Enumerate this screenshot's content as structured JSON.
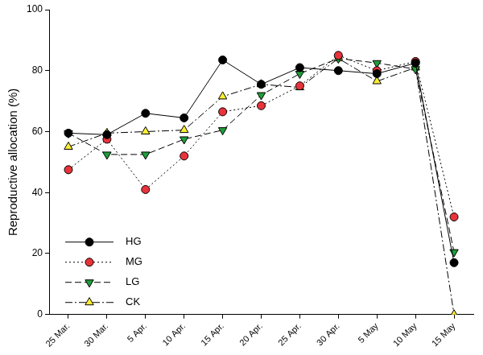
{
  "chart_data": {
    "type": "line",
    "y_label": "Reproductive allocation (%)",
    "categories": [
      "25 Mar.",
      "30 Mar.",
      "5 Apr.",
      "10 Apr.",
      "15 Apr.",
      "20 Apr.",
      "25 Apr.",
      "30 Apr.",
      "5 May",
      "10 May",
      "15 May"
    ],
    "series": [
      {
        "name": "HG",
        "color": "#000000",
        "marker": "circle",
        "line_style": "solid",
        "values": [
          59.5,
          59,
          66,
          64.5,
          83.5,
          75.5,
          81,
          80,
          79,
          82.5,
          17
        ]
      },
      {
        "name": "MG",
        "color": "#e8333a",
        "marker": "circle",
        "line_style": "dotted",
        "values": [
          47.5,
          57.5,
          41,
          52,
          66.5,
          68.5,
          75,
          85,
          80,
          83,
          32
        ]
      },
      {
        "name": "LG",
        "color": "#1f9e3a",
        "marker": "triangle-down",
        "line_style": "dashed",
        "values": [
          59.5,
          52.5,
          52.5,
          57.5,
          60.5,
          72,
          79,
          84,
          82.5,
          80.5,
          20.5
        ]
      },
      {
        "name": "CK",
        "color": "#ffee33",
        "marker": "triangle",
        "line_style": "dashdot",
        "values": [
          55,
          59.5,
          60,
          60.5,
          71.5,
          75.5,
          74.5,
          84,
          76.5,
          81,
          0
        ]
      }
    ],
    "ylim": [
      0,
      100
    ],
    "yticks": [
      0,
      20,
      40,
      60,
      80,
      100
    ],
    "grid": false,
    "legend": "lower left"
  }
}
